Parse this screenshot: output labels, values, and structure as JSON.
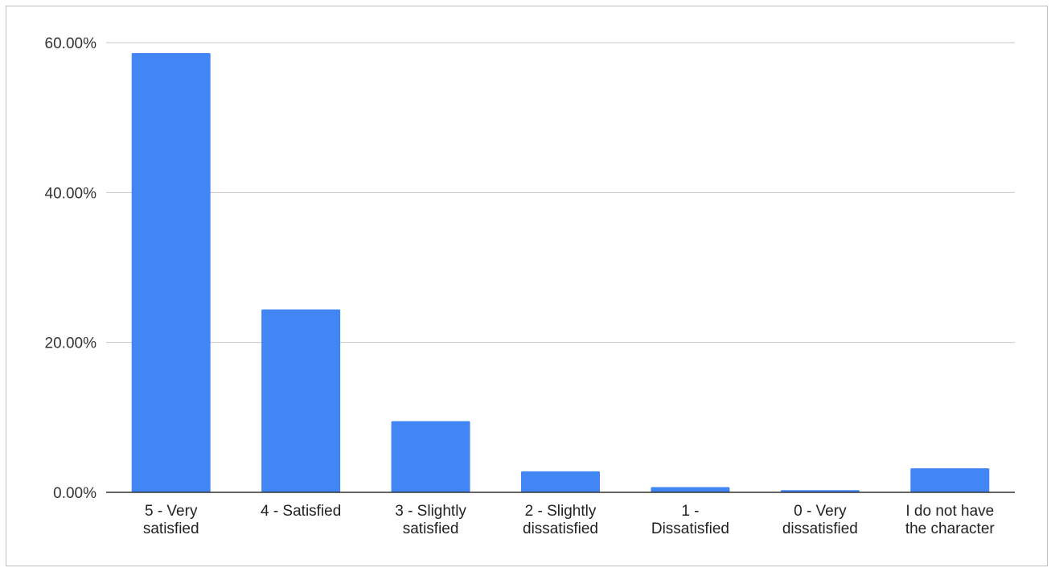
{
  "chart_data": {
    "type": "bar",
    "title": "",
    "xlabel": "",
    "ylabel": "",
    "categories": [
      [
        "5 - Very",
        "satisfied"
      ],
      [
        "4 - Satisfied"
      ],
      [
        "3 - Slightly",
        "satisfied"
      ],
      [
        "2 - Slightly",
        "dissatisfied"
      ],
      [
        "1 -",
        "Dissatisfied"
      ],
      [
        "0 - Very",
        "dissatisfied"
      ],
      [
        "I do not have",
        "the character"
      ]
    ],
    "values": [
      58.6,
      24.4,
      9.5,
      2.8,
      0.7,
      0.3,
      3.2
    ],
    "ylim": [
      0,
      60
    ],
    "yticks": [
      0,
      20,
      40,
      60
    ],
    "ytick_labels": [
      "0.00%",
      "20.00%",
      "40.00%",
      "60.00%"
    ],
    "grid": true,
    "legend": "none",
    "bar_color": "#4285f4"
  }
}
